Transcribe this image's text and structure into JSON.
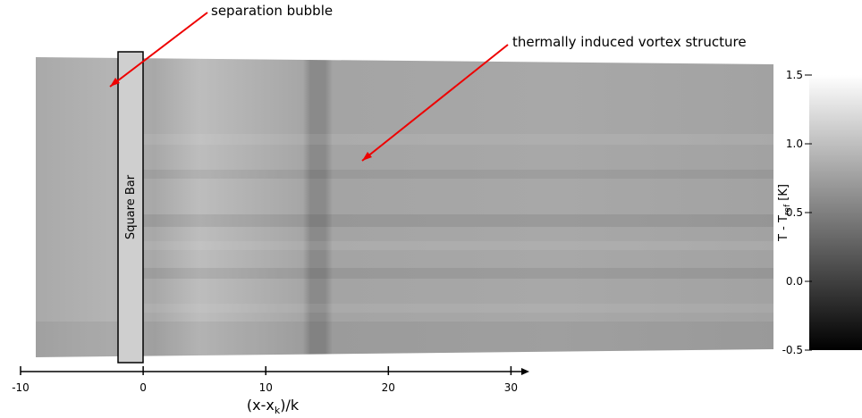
{
  "chart_data": {
    "type": "image",
    "xlabel": [
      "(x-x",
      "k",
      ")/k"
    ],
    "xlim": [
      -10,
      31.5
    ],
    "xticks": [
      -10,
      0,
      10,
      20,
      30
    ],
    "bar_label": "Square Bar",
    "annotations": [
      {
        "text": "separation bubble"
      },
      {
        "text": "thermally induced vortex structure"
      }
    ],
    "colorbar": {
      "label": [
        "T - T",
        "ref",
        " [K]"
      ],
      "clim": [
        -0.5,
        1.5
      ],
      "ticks": [
        1.5,
        {
          "value": 1,
          "label": "1.0"
        },
        0.5,
        {
          "value": 0,
          "label": "0.0"
        },
        -0.5
      ]
    }
  }
}
